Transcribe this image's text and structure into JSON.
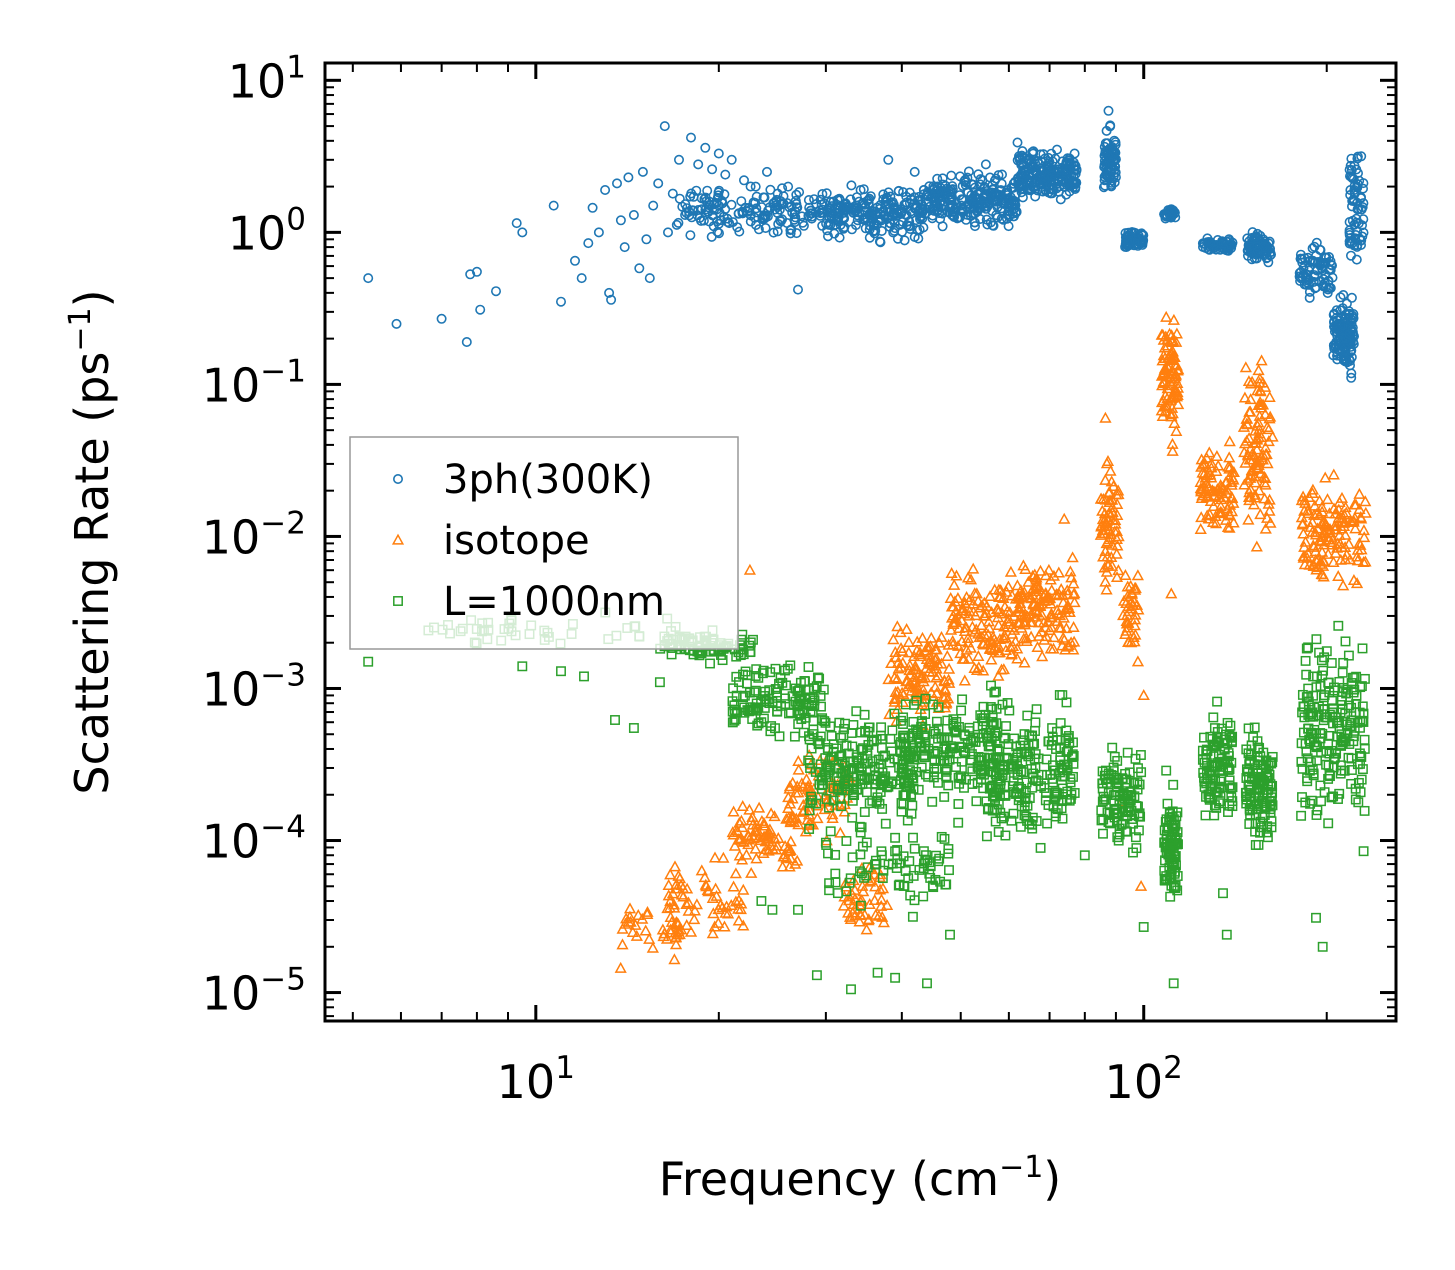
{
  "chart_data": {
    "type": "scatter",
    "title": "",
    "xlabel": "Frequency (cm",
    "xlabel_sup": "−1",
    "xlabel_end": ")",
    "ylabel": "Scattering Rate (ps",
    "ylabel_sup": "−1",
    "ylabel_end": ")",
    "xscale": "log",
    "yscale": "log",
    "xlim": [
      4.5,
      260
    ],
    "ylim": [
      6.5e-06,
      13
    ],
    "x_ticks": [
      {
        "value": 10,
        "base": "10",
        "exp": "1"
      },
      {
        "value": 100,
        "base": "10",
        "exp": "2"
      }
    ],
    "y_ticks": [
      {
        "value": 10,
        "base": "10",
        "exp": "1"
      },
      {
        "value": 1,
        "base": "10",
        "exp": "0"
      },
      {
        "value": 0.1,
        "base": "10",
        "exp": "−1"
      },
      {
        "value": 0.01,
        "base": "10",
        "exp": "−2"
      },
      {
        "value": 0.001,
        "base": "10",
        "exp": "−3"
      },
      {
        "value": 0.0001,
        "base": "10",
        "exp": "−4"
      },
      {
        "value": 1e-05,
        "base": "10",
        "exp": "−5"
      }
    ],
    "legend_position": "center-left",
    "series": [
      {
        "name": "3ph(300K)",
        "marker": "circle",
        "color": "#1f77b4",
        "points": [
          [
            5.3,
            0.5
          ],
          [
            5.9,
            0.25
          ],
          [
            7.0,
            0.27
          ],
          [
            7.7,
            0.19
          ],
          [
            7.8,
            0.53
          ],
          [
            8.0,
            0.55
          ],
          [
            8.1,
            0.31
          ],
          [
            8.6,
            0.41
          ],
          [
            9.3,
            1.15
          ],
          [
            9.5,
            1.0
          ],
          [
            10.7,
            1.5
          ],
          [
            11.0,
            0.35
          ],
          [
            11.6,
            0.65
          ],
          [
            11.9,
            0.5
          ],
          [
            12.2,
            0.85
          ],
          [
            12.4,
            1.45
          ],
          [
            12.7,
            1.0
          ],
          [
            13.0,
            1.9
          ],
          [
            13.2,
            0.4
          ],
          [
            13.3,
            0.36
          ],
          [
            13.6,
            2.1
          ],
          [
            13.8,
            1.2
          ],
          [
            14.0,
            0.8
          ],
          [
            14.2,
            2.3
          ],
          [
            14.5,
            1.3
          ],
          [
            14.8,
            0.58
          ],
          [
            15.0,
            2.5
          ],
          [
            15.2,
            0.9
          ],
          [
            15.4,
            0.5
          ],
          [
            15.6,
            1.5
          ],
          [
            15.9,
            2.1
          ],
          [
            16.3,
            5.0
          ],
          [
            16.5,
            1.0
          ],
          [
            16.8,
            1.8
          ],
          [
            17.2,
            3.0
          ],
          [
            17.6,
            1.3
          ],
          [
            18.0,
            4.2
          ],
          [
            18.5,
            2.8
          ],
          [
            19.0,
            3.6
          ],
          [
            19.5,
            2.6
          ],
          [
            20.0,
            3.3
          ],
          [
            20.5,
            2.4
          ],
          [
            21.0,
            3.0
          ],
          [
            22.0,
            2.2
          ],
          [
            23.0,
            2.0
          ],
          [
            24.0,
            2.5
          ],
          [
            25.0,
            1.8
          ],
          [
            26.0,
            2.0
          ],
          [
            27.0,
            0.42
          ],
          [
            38.0,
            3.0
          ],
          [
            42.0,
            2.5
          ],
          [
            55.0,
            2.8
          ],
          [
            62.0,
            3.9
          ],
          [
            72.0,
            3.5
          ],
          [
            87.5,
            6.3
          ]
        ],
        "bands": [
          {
            "x": [
              17.0,
              30.0
            ],
            "y": [
              0.85,
              2.2
            ],
            "n": 170
          },
          {
            "x": [
              30.0,
              44.0
            ],
            "y": [
              0.8,
              2.3
            ],
            "n": 220
          },
          {
            "x": [
              44.0,
              62.0
            ],
            "y": [
              0.95,
              2.7
            ],
            "n": 240
          },
          {
            "x": [
              62.0,
              78.0
            ],
            "y": [
              1.4,
              3.9
            ],
            "n": 210
          },
          {
            "x": [
              86.0,
              90.0
            ],
            "y": [
              1.5,
              5.5
            ],
            "n": 80
          },
          {
            "x": [
              93.0,
              100.0
            ],
            "y": [
              0.75,
              1.1
            ],
            "n": 60
          },
          {
            "x": [
              108.0,
              113.0
            ],
            "y": [
              1.2,
              1.45
            ],
            "n": 30
          },
          {
            "x": [
              125.0,
              140.0
            ],
            "y": [
              0.72,
              0.95
            ],
            "n": 55
          },
          {
            "x": [
              148.0,
              162.0
            ],
            "y": [
              0.58,
              1.1
            ],
            "n": 80
          },
          {
            "x": [
              180.0,
              205.0
            ],
            "y": [
              0.3,
              1.0
            ],
            "n": 80
          },
          {
            "x": [
              205.0,
              222.0
            ],
            "y": [
              0.1,
              0.45
            ],
            "n": 130
          },
          {
            "x": [
              218.0,
              230.0
            ],
            "y": [
              0.4,
              6.0
            ],
            "n": 70
          }
        ]
      },
      {
        "name": "isotope",
        "marker": "triangle",
        "color": "#ff7f0e",
        "points": [
          [
            22.5,
            0.006
          ],
          [
            74.0,
            0.013
          ],
          [
            86.5,
            0.06
          ],
          [
            111.0,
            0.0042
          ],
          [
            92.0,
            0.00018
          ],
          [
            99.0,
            5e-05
          ],
          [
            100.0,
            0.0009
          ]
        ],
        "bands": [
          {
            "x": [
              13.5,
              17.5
            ],
            "y": [
              1.2e-05,
              5e-05
            ],
            "n": 40
          },
          {
            "x": [
              16.5,
              22.0
            ],
            "y": [
              2e-05,
              9e-05
            ],
            "n": 60
          },
          {
            "x": [
              21.0,
              27.0
            ],
            "y": [
              5e-05,
              0.0002
            ],
            "n": 80
          },
          {
            "x": [
              26.0,
              33.0
            ],
            "y": [
              9e-05,
              0.00045
            ],
            "n": 80
          },
          {
            "x": [
              32.0,
              38.0
            ],
            "y": [
              2e-05,
              0.0001
            ],
            "n": 50
          },
          {
            "x": [
              38.0,
              48.0
            ],
            "y": [
              0.00045,
              0.0035
            ],
            "n": 120
          },
          {
            "x": [
              48.0,
              62.0
            ],
            "y": [
              0.0009,
              0.007
            ],
            "n": 140
          },
          {
            "x": [
              62.0,
              77.0
            ],
            "y": [
              0.0012,
              0.009
            ],
            "n": 140
          },
          {
            "x": [
              85.0,
              91.0
            ],
            "y": [
              0.003,
              0.045
            ],
            "n": 70
          },
          {
            "x": [
              92.0,
              98.0
            ],
            "y": [
              0.0011,
              0.009
            ],
            "n": 40
          },
          {
            "x": [
              107.0,
              114.0
            ],
            "y": [
              0.03,
              0.45
            ],
            "n": 90
          },
          {
            "x": [
              124.0,
              141.0
            ],
            "y": [
              0.008,
              0.05
            ],
            "n": 90
          },
          {
            "x": [
              146.0,
              163.0
            ],
            "y": [
              0.006,
              0.25
            ],
            "n": 110
          },
          {
            "x": [
              182.0,
              232.0
            ],
            "y": [
              0.0035,
              0.03
            ],
            "n": 140
          }
        ]
      },
      {
        "name": "L=1000nm",
        "marker": "square",
        "color": "#2ca02c",
        "points": [
          [
            5.3,
            0.0015
          ],
          [
            9.5,
            0.0014
          ],
          [
            11.0,
            0.0013
          ],
          [
            12.0,
            0.0012
          ],
          [
            13.5,
            0.00062
          ],
          [
            14.5,
            0.00055
          ],
          [
            16.0,
            0.0011
          ],
          [
            23.5,
            4e-05
          ],
          [
            24.5,
            3.5e-05
          ],
          [
            27.0,
            3.5e-05
          ],
          [
            29.0,
            1.3e-05
          ],
          [
            33.0,
            1.05e-05
          ],
          [
            36.5,
            1.35e-05
          ],
          [
            39.0,
            1.25e-05
          ],
          [
            44.0,
            1.15e-05
          ],
          [
            48.0,
            2.4e-05
          ],
          [
            100.0,
            2.7e-05
          ],
          [
            112.0,
            1.15e-05
          ],
          [
            137.0,
            2.4e-05
          ],
          [
            192.0,
            3.1e-05
          ],
          [
            197.0,
            2e-05
          ],
          [
            135.0,
            4.5e-05
          ],
          [
            230.0,
            8.5e-05
          ],
          [
            80.0,
            8e-05
          ]
        ],
        "bands": [
          {
            "x": [
              6.5,
              17.0
            ],
            "y": [
              0.0017,
              0.0033
            ],
            "n": 45
          },
          {
            "x": [
              16.0,
              23.0
            ],
            "y": [
              0.0014,
              0.0026
            ],
            "n": 80
          },
          {
            "x": [
              21.0,
              30.0
            ],
            "y": [
              0.0004,
              0.0018
            ],
            "n": 130
          },
          {
            "x": [
              28.0,
              42.0
            ],
            "y": [
              0.0001,
              0.0009
            ],
            "n": 220
          },
          {
            "x": [
              30.0,
              48.0
            ],
            "y": [
              3e-05,
              0.00015
            ],
            "n": 80
          },
          {
            "x": [
              40.0,
              58.0
            ],
            "y": [
              0.00012,
              0.0012
            ],
            "n": 200
          },
          {
            "x": [
              55.0,
              77.0
            ],
            "y": [
              7e-05,
              0.0012
            ],
            "n": 220
          },
          {
            "x": [
              85.0,
              99.0
            ],
            "y": [
              6e-05,
              0.0006
            ],
            "n": 110
          },
          {
            "x": [
              108.0,
              114.0
            ],
            "y": [
              3e-05,
              0.0003
            ],
            "n": 90
          },
          {
            "x": [
              125.0,
              140.0
            ],
            "y": [
              0.00011,
              0.00085
            ],
            "n": 110
          },
          {
            "x": [
              147.0,
              163.0
            ],
            "y": [
              7e-05,
              0.0008
            ],
            "n": 120
          },
          {
            "x": [
              181.0,
              232.0
            ],
            "y": [
              9e-05,
              0.0036
            ],
            "n": 200
          }
        ]
      }
    ]
  }
}
